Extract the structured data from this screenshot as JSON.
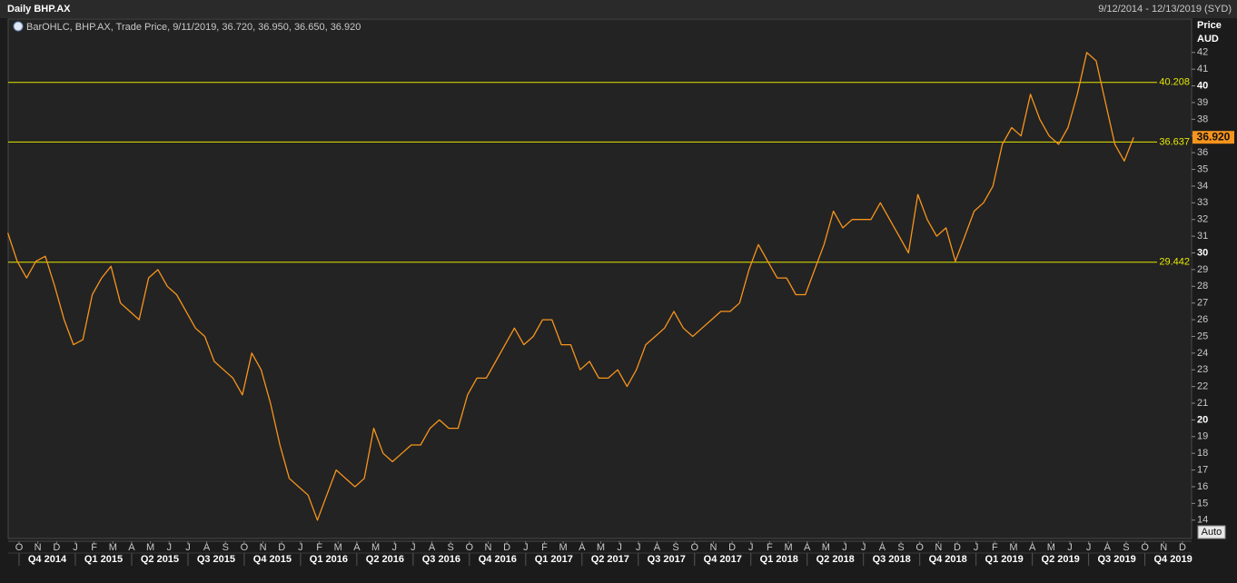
{
  "chart_data": {
    "type": "line",
    "title": "Daily BHP.AX",
    "date_range": "9/12/2014 - 12/13/2019 (SYD)",
    "legend_text": "BarOHLC, BHP.AX, Trade Price, 9/11/2019, 36.720, 36.950, 36.650, 36.920",
    "y_axis_label": "Price",
    "y_axis_unit": "AUD",
    "autoscale_button": "Auto",
    "series": [
      {
        "name": "BHP.AX",
        "color": "#f7941d",
        "values": [
          31.2,
          29.5,
          28.5,
          29.5,
          29.8,
          28,
          26,
          24.5,
          24.8,
          27.5,
          28.5,
          29.2,
          27,
          26.5,
          26,
          28.5,
          29,
          28,
          27.5,
          26.5,
          25.5,
          25,
          23.5,
          23,
          22.5,
          21.5,
          24,
          23,
          21,
          18.5,
          16.5,
          16,
          15.5,
          14,
          15.5,
          17,
          16.5,
          16,
          16.5,
          19.5,
          18,
          17.5,
          18,
          18.5,
          18.5,
          19.5,
          20,
          19.5,
          19.5,
          21.5,
          22.5,
          22.5,
          23.5,
          24.5,
          25.5,
          24.5,
          25,
          26,
          26,
          24.5,
          24.5,
          23,
          23.5,
          22.5,
          22.5,
          23,
          22,
          23,
          24.5,
          25,
          25.5,
          26.5,
          25.5,
          25,
          25.5,
          26,
          26.5,
          26.5,
          27,
          29,
          30.5,
          29.5,
          28.5,
          28.5,
          27.5,
          27.5,
          29,
          30.5,
          32.5,
          31.5,
          32,
          32,
          32,
          33,
          32,
          31,
          30,
          33.5,
          32,
          31,
          31.5,
          29.5,
          31,
          32.5,
          33,
          34,
          36.5,
          37.5,
          37,
          39.5,
          38,
          37,
          36.5,
          37.5,
          39.5,
          42,
          41.5,
          39,
          36.5,
          35.5,
          36.92
        ]
      }
    ],
    "last_value": {
      "value": 36.92,
      "label": "36.920"
    },
    "levels": [
      40.208,
      36.637,
      29.442
    ],
    "level_color": "#e6e600",
    "ylim": [
      12.9,
      44
    ],
    "yticks": [
      14,
      15,
      16,
      17,
      18,
      19,
      20,
      21,
      22,
      23,
      24,
      25,
      26,
      27,
      28,
      29,
      30,
      31,
      32,
      33,
      34,
      35,
      36,
      37,
      38,
      39,
      40,
      41,
      42
    ],
    "month_labels": [
      "O",
      "N",
      "D",
      "J",
      "F",
      "M",
      "A",
      "M",
      "J",
      "J",
      "A",
      "S",
      "O",
      "N",
      "D",
      "J",
      "F",
      "M",
      "A",
      "M",
      "J",
      "J",
      "A",
      "S",
      "O",
      "N",
      "D",
      "J",
      "F",
      "M",
      "A",
      "M",
      "J",
      "J",
      "A",
      "S",
      "O",
      "N",
      "D",
      "J",
      "F",
      "M",
      "A",
      "M",
      "J",
      "J",
      "A",
      "S",
      "O",
      "N",
      "D",
      "J",
      "F",
      "M",
      "A",
      "M",
      "J",
      "J",
      "A",
      "S",
      "O",
      "N",
      "D"
    ],
    "quarter_labels": [
      "Q4 2014",
      "Q1 2015",
      "Q2 2015",
      "Q3 2015",
      "Q4 2015",
      "Q1 2016",
      "Q2 2016",
      "Q3 2016",
      "Q4 2016",
      "Q1 2017",
      "Q2 2017",
      "Q3 2017",
      "Q4 2017",
      "Q1 2018",
      "Q2 2018",
      "Q3 2018",
      "Q4 2018",
      "Q1 2019",
      "Q2 2019",
      "Q3 2019",
      "Q4 2019"
    ]
  }
}
